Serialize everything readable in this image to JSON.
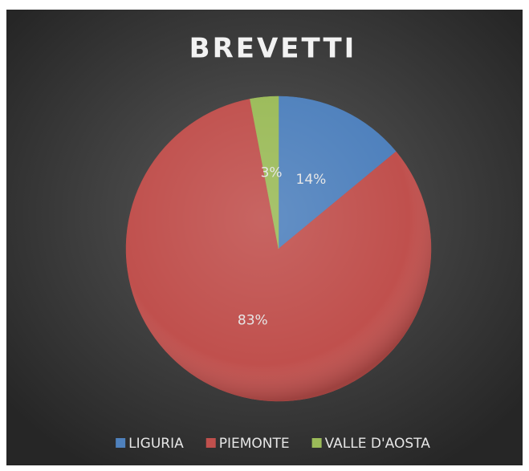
{
  "chart_data": {
    "type": "pie",
    "title": "BREVETTI",
    "categories": [
      "LIGURIA",
      "PIEMONTE",
      "VALLE D'AOSTA"
    ],
    "values": [
      14,
      83,
      3
    ],
    "value_labels": [
      "14%",
      "83%",
      "3%"
    ],
    "colors": [
      "#4f81bd",
      "#c0504d",
      "#9bbb59"
    ],
    "legend": "bottom"
  }
}
